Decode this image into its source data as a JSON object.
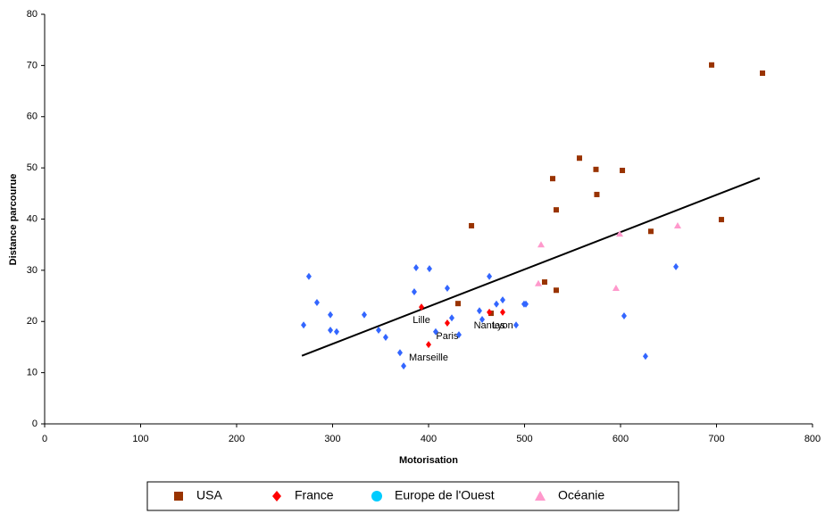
{
  "chart_data": {
    "type": "scatter",
    "xlabel": "Motorisation",
    "ylabel": "Distance parcourue",
    "xlim": [
      0,
      800
    ],
    "xticks": [
      0,
      100,
      200,
      300,
      400,
      500,
      600,
      700,
      800
    ],
    "ylim": [
      0,
      80
    ],
    "yticks": [
      0,
      10,
      20,
      30,
      40,
      50,
      60,
      70,
      80
    ],
    "grid": false,
    "legend": "bottom",
    "series": [
      {
        "name": "USA",
        "color": "#993300",
        "marker": "square",
        "x": [
          694.9,
          747.9,
          557.2,
          574.4,
          601.9,
          529.3,
          575.3,
          533,
          705.1,
          444.7,
          631.6,
          520.9,
          533,
          430.7,
          465.1
        ],
        "y": [
          70.1,
          68.5,
          51.9,
          49.7,
          49.5,
          47.9,
          44.8,
          41.8,
          39.9,
          38.7,
          37.6,
          27.7,
          26.1,
          23.5,
          21.6
        ]
      },
      {
        "name": "France",
        "color": "#ff0000",
        "marker": "diamond",
        "x": [
          392.6,
          419.5,
          400,
          463.3,
          477.2
        ],
        "y": [
          22.8,
          19.7,
          15.5,
          21.8,
          21.8
        ],
        "point_labels": [
          "Lille",
          "Paris",
          "Marseille",
          "Nantes",
          "Lyon"
        ]
      },
      {
        "name": "Europe de l'Ouest",
        "color": "#3366ff",
        "marker": "diamond",
        "legend_marker": "circle",
        "legend_color": "#00ccff",
        "x": [
          275.3,
          283.7,
          269.8,
          304.2,
          297.7,
          333,
          297.7,
          355.3,
          370.2,
          374,
          347.9,
          387,
          385.1,
          400.9,
          419.5,
          407.4,
          424.2,
          431.6,
          463.3,
          453,
          455.8,
          470.7,
          477.2,
          491.2,
          499.5,
          501.4,
          657.7,
          603.7,
          626
        ],
        "y": [
          28.8,
          23.7,
          19.3,
          18,
          21.3,
          21.3,
          18.3,
          16.9,
          13.9,
          11.3,
          18.3,
          30.5,
          25.8,
          30.3,
          26.5,
          18,
          20.7,
          17.4,
          28.8,
          22.1,
          20.4,
          23.4,
          24.2,
          19.3,
          23.4,
          23.4,
          30.7,
          21.1,
          13.2
        ]
      },
      {
        "name": "Océanie",
        "color": "#ff99cc",
        "marker": "triangle",
        "x": [
          517.2,
          599.1,
          659.5,
          514.4,
          595.3
        ],
        "y": [
          35,
          37.1,
          38.7,
          27.4,
          26.5
        ]
      }
    ],
    "trendline": {
      "color": "#000000",
      "x": [
        268,
        745
      ],
      "y": [
        13.3,
        48
      ]
    }
  }
}
